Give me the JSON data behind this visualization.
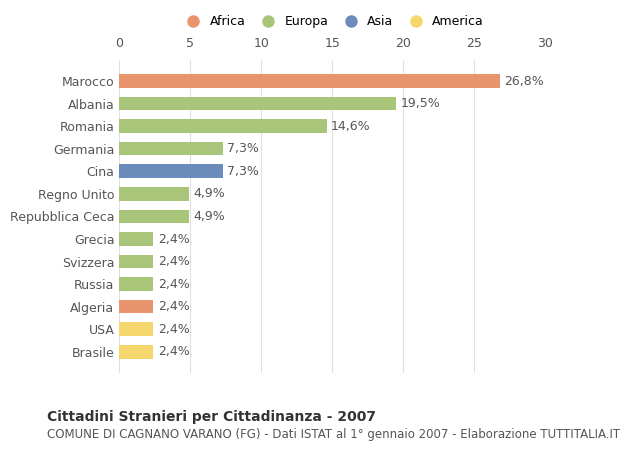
{
  "categories": [
    "Brasile",
    "USA",
    "Algeria",
    "Russia",
    "Svizzera",
    "Grecia",
    "Repubblica Ceca",
    "Regno Unito",
    "Cina",
    "Germania",
    "Romania",
    "Albania",
    "Marocco"
  ],
  "values": [
    2.4,
    2.4,
    2.4,
    2.4,
    2.4,
    2.4,
    4.9,
    4.9,
    7.3,
    7.3,
    14.6,
    19.5,
    26.8
  ],
  "labels": [
    "2,4%",
    "2,4%",
    "2,4%",
    "2,4%",
    "2,4%",
    "2,4%",
    "4,9%",
    "4,9%",
    "7,3%",
    "7,3%",
    "14,6%",
    "19,5%",
    "26,8%"
  ],
  "colors": [
    "#f5d76e",
    "#f5d76e",
    "#e8956d",
    "#a8c57a",
    "#a8c57a",
    "#a8c57a",
    "#a8c57a",
    "#a8c57a",
    "#6b8cba",
    "#a8c57a",
    "#a8c57a",
    "#a8c57a",
    "#e8956d"
  ],
  "legend_labels": [
    "Africa",
    "Europa",
    "Asia",
    "America"
  ],
  "legend_colors": [
    "#e8956d",
    "#a8c57a",
    "#6b8cba",
    "#f5d76e"
  ],
  "title": "Cittadini Stranieri per Cittadinanza - 2007",
  "subtitle": "COMUNE DI CAGNANO VARANO (FG) - Dati ISTAT al 1° gennaio 2007 - Elaborazione TUTTITALIA.IT",
  "xlim": [
    0,
    30
  ],
  "xticks": [
    0,
    5,
    10,
    15,
    20,
    25,
    30
  ],
  "bar_height": 0.6,
  "background_color": "#ffffff",
  "grid_color": "#e0e0e0",
  "text_color": "#555555",
  "label_fontsize": 9,
  "tick_fontsize": 9,
  "title_fontsize": 10,
  "subtitle_fontsize": 8.5
}
